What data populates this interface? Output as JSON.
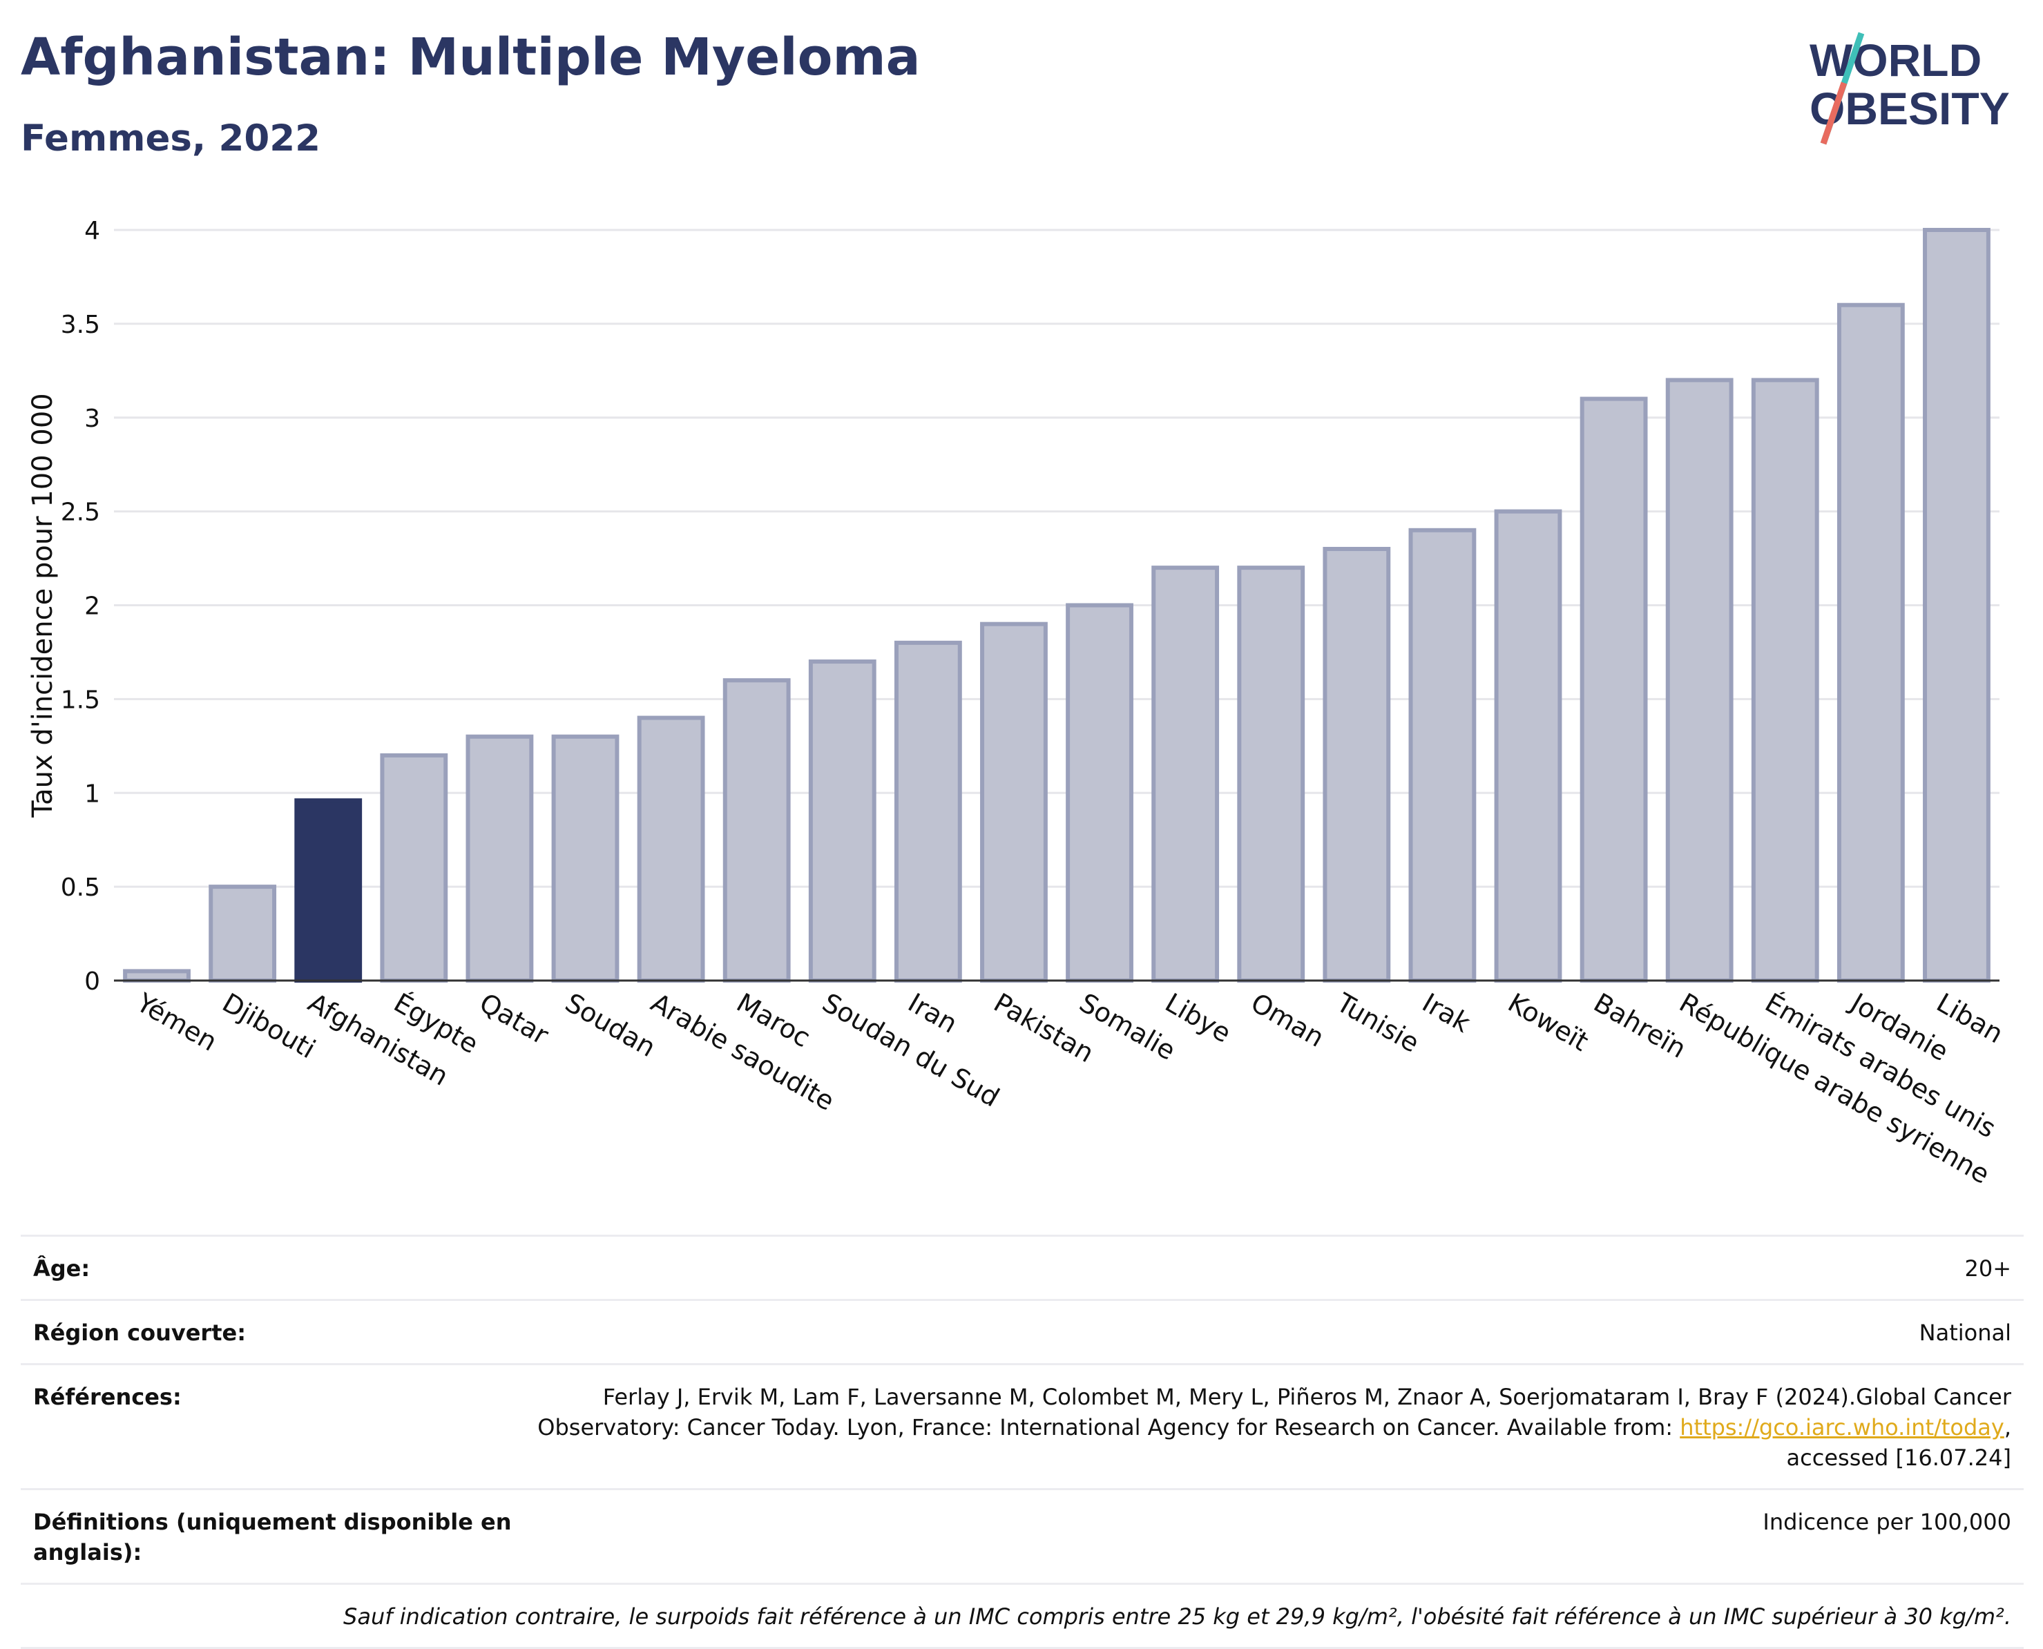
{
  "header": {
    "title": "Afghanistan: Multiple Myeloma",
    "subtitle": "Femmes, 2022"
  },
  "logo": {
    "line1": "WORLD",
    "line2": "OBESITY"
  },
  "colors": {
    "highlight": "#2b3663",
    "bar": "#bfc2d1",
    "bar_border": "#9aa0bb",
    "title": "#2b3663",
    "link": "#e0aa1b"
  },
  "chart_data": {
    "type": "bar",
    "ylabel": "Taux d'incidence pour 100 000",
    "ylim": [
      0,
      4
    ],
    "yticks": [
      "0",
      "0.5",
      "1",
      "1.5",
      "2",
      "2.5",
      "3",
      "3.5",
      "4"
    ],
    "grid": true,
    "highlight": "Afghanistan",
    "categories": [
      "Yémen",
      "Djibouti",
      "Afghanistan",
      "Égypte",
      "Qatar",
      "Soudan",
      "Arabie saoudite",
      "Maroc",
      "Soudan du Sud",
      "Iran",
      "Pakistan",
      "Somalie",
      "Libye",
      "Oman",
      "Tunisie",
      "Irak",
      "Koweït",
      "Bahreïn",
      "République arabe syrienne",
      "Émirats arabes unis",
      "Jordanie",
      "Liban"
    ],
    "values": [
      0.05,
      0.5,
      0.96,
      1.2,
      1.3,
      1.3,
      1.4,
      1.6,
      1.7,
      1.8,
      1.9,
      2.0,
      2.2,
      2.2,
      2.3,
      2.4,
      2.5,
      3.1,
      3.2,
      3.2,
      3.6,
      4.0
    ]
  },
  "info": {
    "age_label": "Âge:",
    "age_value": "20+",
    "region_label": "Région couverte:",
    "region_value": "National",
    "references_label": "Références:",
    "references_text": "Ferlay J, Ervik M, Lam F, Laversanne M, Colombet M, Mery L, Piñeros M, Znaor A, Soerjomataram I, Bray F (2024).Global Cancer Observatory: Cancer Today. Lyon, France: International Agency for Research on Cancer. Available from: ",
    "references_link": "https://gco.iarc.who.int/today",
    "references_suffix": ", accessed [16.07.24]",
    "definitions_label": "Définitions (uniquement disponible en anglais):",
    "definitions_value": "Indicence per 100,000",
    "note": "Sauf indication contraire, le surpoids fait référence à un IMC compris entre 25 kg et 29,9 kg/m², l'obésité fait référence à un IMC supérieur à 30 kg/m²."
  }
}
